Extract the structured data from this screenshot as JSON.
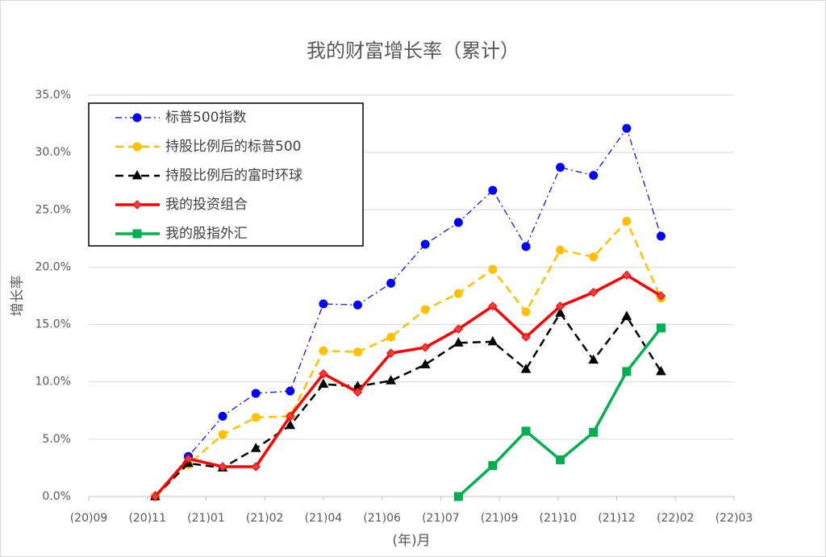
{
  "chart_data": {
    "type": "line",
    "title": "我的财富增长率（累计）",
    "x_label": "(年)月",
    "y_label": "增长率",
    "x": [
      60,
      90,
      121,
      151,
      182,
      212,
      243,
      273,
      304,
      334,
      365,
      395,
      426,
      456,
      486,
      517
    ],
    "xlim": [
      0,
      583
    ],
    "xticks": [
      {
        "value": 0,
        "label": "(20)09"
      },
      {
        "value": 53,
        "label": "(20)11"
      },
      {
        "value": 106,
        "label": "(21)01"
      },
      {
        "value": 159,
        "label": "(21)02"
      },
      {
        "value": 212,
        "label": "(21)04"
      },
      {
        "value": 265,
        "label": "(21)06"
      },
      {
        "value": 318,
        "label": "(21)07"
      },
      {
        "value": 371,
        "label": "(21)09"
      },
      {
        "value": 424,
        "label": "(21)10"
      },
      {
        "value": 477,
        "label": "(21)12"
      },
      {
        "value": 530,
        "label": "(22)02"
      },
      {
        "value": 583,
        "label": "(22)03"
      }
    ],
    "ylim": [
      0,
      35
    ],
    "yticks": [
      {
        "value": 0,
        "label": "0.0%"
      },
      {
        "value": 5,
        "label": "5.0%"
      },
      {
        "value": 10,
        "label": "10.0%"
      },
      {
        "value": 15,
        "label": "15.0%"
      },
      {
        "value": 20,
        "label": "20.0%"
      },
      {
        "value": 25,
        "label": "25.0%"
      },
      {
        "value": 30,
        "label": "30.0%"
      },
      {
        "value": 35,
        "label": "35.0%"
      }
    ],
    "grid": true,
    "legend": "upper left",
    "series": [
      {
        "name": "标普500指数",
        "color": "#0000ff",
        "dash": "dashdot",
        "marker": "circle",
        "values": [
          0,
          3.5,
          7.0,
          9.0,
          9.2,
          16.8,
          16.7,
          18.6,
          22.0,
          23.9,
          26.7,
          21.8,
          28.7,
          28.0,
          32.1,
          22.7
        ]
      },
      {
        "name": "持股比例后的标普500",
        "color": "#ffc000",
        "dash": "dashed",
        "marker": "circle",
        "values": [
          0,
          2.8,
          5.4,
          6.9,
          7.0,
          12.7,
          12.6,
          13.9,
          16.3,
          17.7,
          19.8,
          16.1,
          21.5,
          20.9,
          24.0,
          17.3
        ]
      },
      {
        "name": "持股比例后的富时环球",
        "color": "#000000",
        "dash": "dashed",
        "marker": "triangle",
        "values": [
          0,
          2.9,
          2.5,
          4.2,
          6.2,
          9.8,
          9.6,
          10.1,
          11.5,
          13.4,
          13.5,
          11.1,
          16.0,
          11.9,
          15.7,
          10.9
        ]
      },
      {
        "name": "我的投资组合",
        "color": "#ff0000",
        "dash": "solid",
        "marker": "diamond",
        "values": [
          0,
          3.3,
          2.6,
          2.6,
          7.0,
          10.7,
          9.1,
          12.5,
          13.0,
          14.6,
          16.6,
          13.9,
          16.6,
          17.8,
          19.3,
          17.5
        ]
      },
      {
        "name": "我的股指外汇",
        "color": "#00b050",
        "dash": "solid",
        "marker": "square",
        "values": [
          null,
          null,
          null,
          null,
          null,
          null,
          null,
          null,
          null,
          0,
          2.7,
          5.7,
          3.2,
          5.6,
          10.9,
          14.7
        ]
      }
    ]
  }
}
